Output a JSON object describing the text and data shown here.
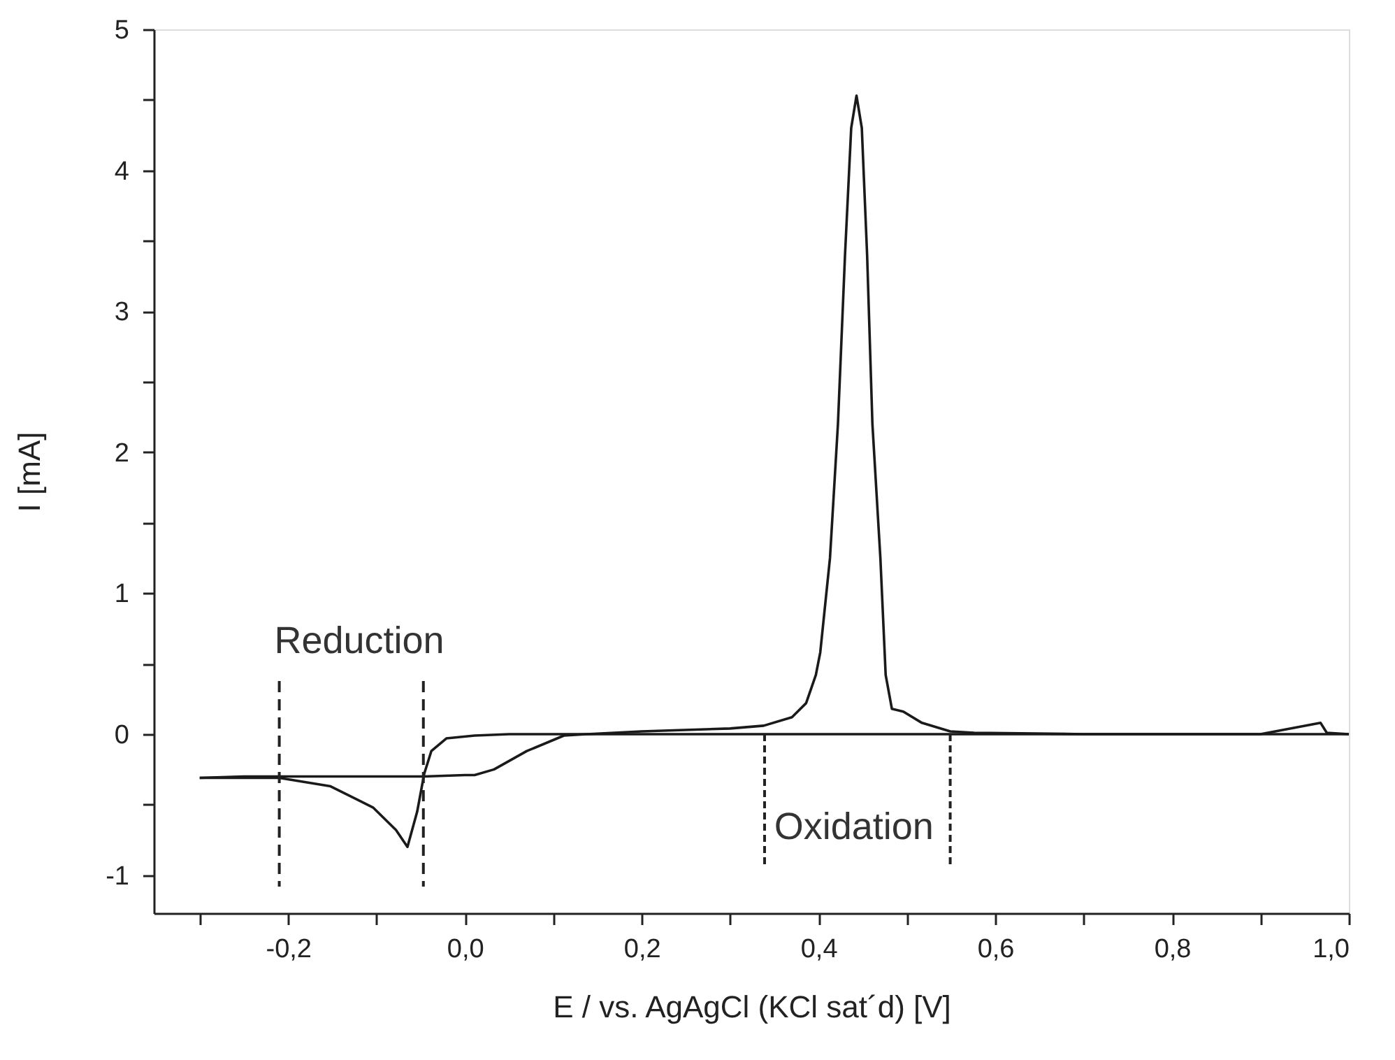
{
  "chart_data": {
    "type": "line",
    "xlabel": "E / vs. AgAgCl (KCl sat´d) [V]",
    "ylabel": "I [mA]",
    "series": [
      {
        "color": "#1a1a1a",
        "x": [
          -0.3,
          -0.25,
          -0.21,
          -0.1,
          -0.046,
          0.0,
          0.011,
          0.033,
          0.07,
          0.112,
          0.138,
          0.2,
          0.3,
          0.338,
          0.37,
          0.386,
          0.397,
          0.402,
          0.413,
          0.422,
          0.43,
          0.437,
          0.443,
          0.449,
          0.455,
          0.461,
          0.47,
          0.476,
          0.483,
          0.496,
          0.517,
          0.549,
          0.576,
          0.7,
          0.9,
          0.968,
          0.975,
          1.0
        ],
        "values": [
          -0.31,
          -0.3,
          -0.3,
          -0.3,
          -0.3,
          -0.29,
          -0.29,
          -0.25,
          -0.12,
          -0.01,
          0.0,
          0.02,
          0.04,
          0.06,
          0.12,
          0.22,
          0.42,
          0.58,
          1.25,
          2.2,
          3.4,
          4.3,
          4.53,
          4.3,
          3.4,
          2.2,
          1.25,
          0.42,
          0.18,
          0.16,
          0.08,
          0.02,
          0.01,
          0.0,
          0.0,
          0.08,
          0.01,
          0.0
        ]
      },
      {
        "color": "#1a1a1a",
        "x": [
          1.0,
          0.8,
          0.6,
          0.4,
          0.2,
          0.138,
          0.05,
          0.011,
          -0.021,
          -0.038,
          -0.046,
          -0.054,
          -0.065,
          -0.078,
          -0.104,
          -0.152,
          -0.21,
          -0.3
        ],
        "values": [
          0.0,
          0.0,
          0.0,
          0.0,
          0.0,
          0.0,
          0.0,
          -0.01,
          -0.03,
          -0.12,
          -0.28,
          -0.55,
          -0.8,
          -0.68,
          -0.52,
          -0.37,
          -0.31,
          -0.31
        ]
      }
    ],
    "xlim": [
      -0.352,
      1.0
    ],
    "ylim": [
      -1.27,
      5
    ],
    "xticks": [
      {
        "value": -0.3,
        "label": null
      },
      {
        "value": -0.2,
        "label": "-0,2"
      },
      {
        "value": -0.1,
        "label": null
      },
      {
        "value": 0.0,
        "label": "0,0"
      },
      {
        "value": 0.1,
        "label": null
      },
      {
        "value": 0.2,
        "label": "0,2"
      },
      {
        "value": 0.3,
        "label": null
      },
      {
        "value": 0.4,
        "label": "0,4"
      },
      {
        "value": 0.5,
        "label": null
      },
      {
        "value": 0.6,
        "label": "0,6"
      },
      {
        "value": 0.7,
        "label": null
      },
      {
        "value": 0.8,
        "label": "0,8"
      },
      {
        "value": 0.9,
        "label": null
      },
      {
        "value": 1.0,
        "label": "1,0"
      }
    ],
    "yticks": [
      -1,
      {
        "value": -0.5,
        "label": null
      },
      0,
      {
        "value": 0.5,
        "label": null
      },
      1,
      {
        "value": 1.5,
        "label": null
      },
      2,
      {
        "value": 2.5,
        "label": null
      },
      3,
      {
        "value": 3.5,
        "label": null
      },
      4,
      {
        "value": 4.5,
        "label": null
      },
      5
    ],
    "ref_lines": [
      {
        "axis": "x",
        "value": -0.21,
        "line_style": "dashed"
      },
      {
        "axis": "x",
        "value": -0.047,
        "line_style": "dashed"
      },
      {
        "axis": "x",
        "value": 0.339,
        "line_style": "dotted"
      },
      {
        "axis": "x",
        "value": 0.549,
        "line_style": "dotted"
      }
    ],
    "annotations": [
      "Reduction",
      {
        "text": "Oxidation",
        "x": 0.44,
        "y": 0
      }
    ],
    "grid": false,
    "legend": false,
    "marker": "none",
    "line_style": "solid"
  }
}
